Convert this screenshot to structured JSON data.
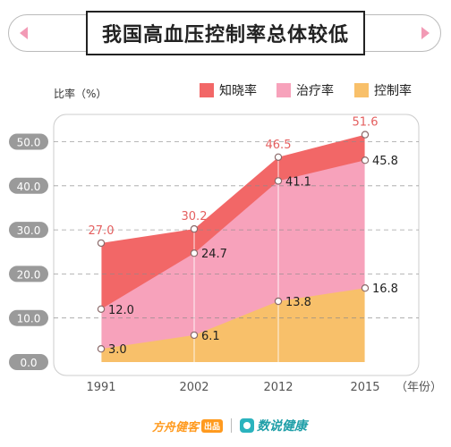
{
  "title": "我国高血压控制率总体较低",
  "unit_label": "比率（%）",
  "x_unit_label": "（年份）",
  "footer": {
    "brand": "方舟健客",
    "brand_badge": "出品",
    "app": "数说健康"
  },
  "colors": {
    "awareness": "#f26767",
    "treatment": "#f7a2bb",
    "control": "#f8c06a",
    "awareness_label": "#e45f5f",
    "ytick_bg": "#9a9a9a"
  },
  "chart_data": {
    "type": "area",
    "x": [
      "1991",
      "2002",
      "2012",
      "2015"
    ],
    "series": [
      {
        "name": "知晓率",
        "values": [
          27.0,
          30.2,
          46.5,
          51.6
        ]
      },
      {
        "name": "治疗率",
        "values": [
          12.0,
          24.7,
          41.1,
          45.8
        ]
      },
      {
        "name": "控制率",
        "values": [
          3.0,
          6.1,
          13.8,
          16.8
        ]
      }
    ],
    "y_ticks": [
      "0.0",
      "10.0",
      "20.0",
      "30.0",
      "40.0",
      "50.0"
    ],
    "ylim": [
      0,
      50
    ],
    "grid": true,
    "legend": "top-right"
  }
}
